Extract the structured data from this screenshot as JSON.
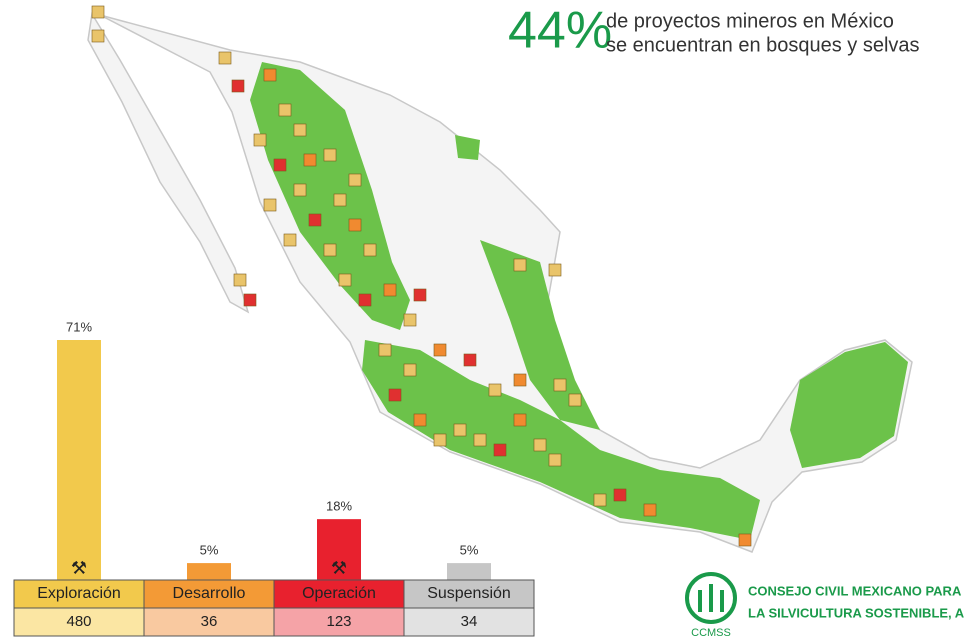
{
  "chart_data": {
    "type": "bar",
    "title": "44%",
    "subtitle": [
      "de proyectos mineros en México",
      "se encuentran en bosques y selvas"
    ],
    "categories": [
      "Exploración",
      "Desarrollo",
      "Operación",
      "Suspensión"
    ],
    "values": [
      71,
      5,
      18,
      5
    ],
    "value_labels": [
      "71%",
      "5%",
      "18%",
      "5%"
    ],
    "counts": [
      480,
      36,
      123,
      34
    ],
    "colors": [
      "#f2c94c",
      "#f39a36",
      "#e8212e",
      "#c6c6c6"
    ],
    "light_colors": [
      "#fbe6a3",
      "#f9c9a0",
      "#f5a3a7",
      "#e2e2e2"
    ]
  },
  "logo": {
    "lines": [
      "CONSEJO CIVIL MEXICANO PARA",
      "LA SILVICULTURA SOSTENIBLE, A.C."
    ],
    "acronym": "CCMSS"
  }
}
